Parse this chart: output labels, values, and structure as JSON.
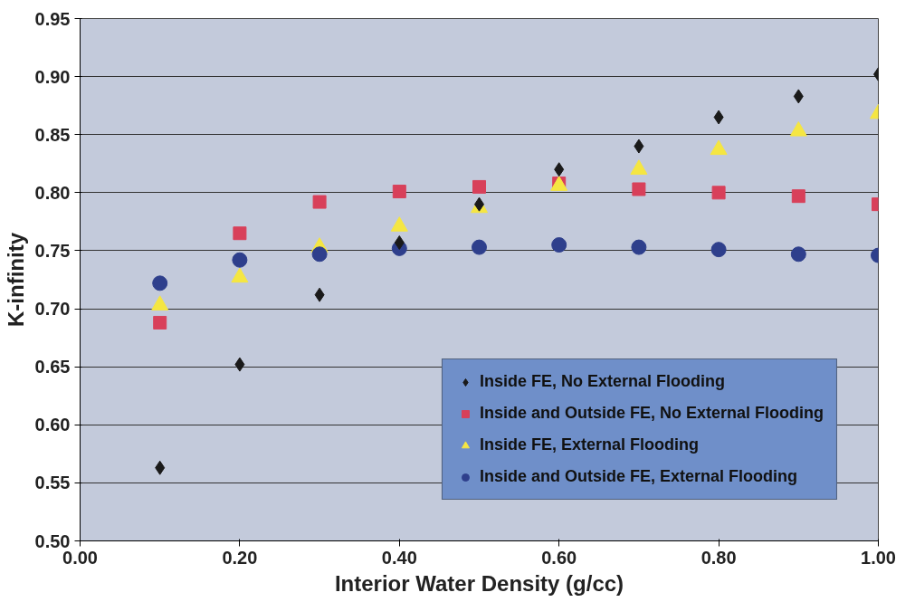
{
  "chart_data": {
    "type": "scatter",
    "xlabel": "Interior Water Density (g/cc)",
    "ylabel": "K-infinity",
    "x": [
      0.1,
      0.2,
      0.3,
      0.4,
      0.5,
      0.6,
      0.7,
      0.8,
      0.9,
      1.0
    ],
    "series": [
      {
        "name": "Inside FE, No External Flooding",
        "color": "#1a1a1a",
        "marker": "diamond",
        "values": [
          0.563,
          0.652,
          0.712,
          0.757,
          0.79,
          0.82,
          0.84,
          0.865,
          0.883,
          0.902
        ]
      },
      {
        "name": "Inside and Outside FE, No External Flooding",
        "color": "#d8405a",
        "marker": "square",
        "values": [
          0.688,
          0.765,
          0.792,
          0.801,
          0.805,
          0.808,
          0.803,
          0.8,
          0.797,
          0.79
        ]
      },
      {
        "name": "Inside FE, External Flooding",
        "color": "#f5e642",
        "marker": "triangle",
        "values": [
          0.703,
          0.727,
          0.753,
          0.771,
          0.787,
          0.806,
          0.82,
          0.837,
          0.853,
          0.868
        ]
      },
      {
        "name": "Inside and Outside FE, External Flooding",
        "color": "#2e3f8c",
        "marker": "circle",
        "values": [
          0.722,
          0.742,
          0.747,
          0.752,
          0.753,
          0.755,
          0.753,
          0.751,
          0.747,
          0.746
        ]
      }
    ],
    "xlim": [
      0,
      1
    ],
    "xticks": [
      {
        "value": 0,
        "label": "0.00"
      },
      {
        "value": 0.2,
        "label": "0.20"
      },
      {
        "value": 0.4,
        "label": "0.40"
      },
      {
        "value": 0.6,
        "label": "0.60"
      },
      {
        "value": 0.8,
        "label": "0.80"
      },
      {
        "value": 1,
        "label": "1.00"
      }
    ],
    "ylim": [
      0.5,
      0.95
    ],
    "yticks": [
      {
        "value": 0.5,
        "label": "0.50"
      },
      {
        "value": 0.55,
        "label": "0.55"
      },
      {
        "value": 0.6,
        "label": "0.60"
      },
      {
        "value": 0.65,
        "label": "0.65"
      },
      {
        "value": 0.7,
        "label": "0.70"
      },
      {
        "value": 0.75,
        "label": "0.75"
      },
      {
        "value": 0.8,
        "label": "0.80"
      },
      {
        "value": 0.85,
        "label": "0.85"
      },
      {
        "value": 0.9,
        "label": "0.90"
      },
      {
        "value": 0.95,
        "label": "0.95"
      }
    ],
    "grid": "y",
    "legend": "bottom right"
  }
}
